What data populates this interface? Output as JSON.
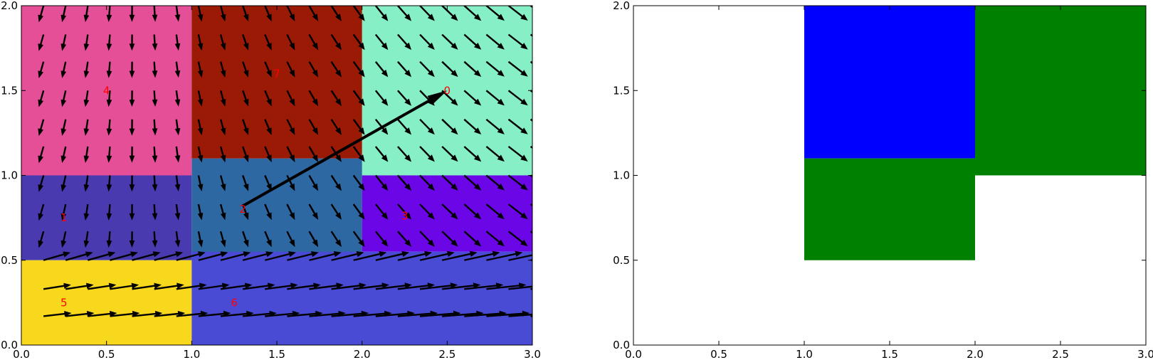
{
  "chart_data": [
    {
      "type": "heatmap",
      "xlim": [
        0,
        3
      ],
      "ylim": [
        0,
        2
      ],
      "xticks": [
        "0.0",
        "0.5",
        "1.0",
        "1.5",
        "2.0",
        "2.5",
        "3.0"
      ],
      "yticks": [
        "0.0",
        "0.5",
        "1.0",
        "1.5",
        "2.0"
      ],
      "grid": false,
      "regions": [
        {
          "label": "0",
          "x": [
            2.0,
            3.0
          ],
          "y": [
            1.0,
            2.0
          ],
          "color": "#87efc6",
          "label_at": [
            2.5,
            1.5
          ]
        },
        {
          "label": "1",
          "x": [
            0.0,
            1.0
          ],
          "y": [
            0.5,
            1.0
          ],
          "color": "#4a3aaf",
          "label_at": [
            0.25,
            0.75
          ]
        },
        {
          "label": "2",
          "x": [
            1.0,
            2.0
          ],
          "y": [
            0.5,
            1.1
          ],
          "color": "#2d68a3",
          "label_at": [
            1.3,
            0.8
          ]
        },
        {
          "label": "3",
          "x": [
            2.0,
            3.0
          ],
          "y": [
            0.55,
            1.0
          ],
          "color": "#6b06e6",
          "label_at": [
            2.25,
            0.76
          ]
        },
        {
          "label": "4",
          "x": [
            0.0,
            1.0
          ],
          "y": [
            1.0,
            2.0
          ],
          "color": "#e44f97",
          "label_at": [
            0.5,
            1.5
          ]
        },
        {
          "label": "5",
          "x": [
            0.0,
            1.0
          ],
          "y": [
            0.0,
            0.5
          ],
          "color": "#f8d81c",
          "label_at": [
            0.25,
            0.25
          ]
        },
        {
          "label": "6",
          "x": [
            1.0,
            3.0
          ],
          "y": [
            0.0,
            0.55
          ],
          "color": "#4a4bd4",
          "label_at": [
            1.25,
            0.25
          ]
        },
        {
          "label": "7",
          "x": [
            1.0,
            2.0
          ],
          "y": [
            1.1,
            2.0
          ],
          "color": "#9b1a05",
          "label_at": [
            1.5,
            1.6
          ]
        }
      ],
      "quiver": {
        "x": [
          0.13,
          0.26,
          0.39,
          0.52,
          0.65,
          0.78,
          0.91,
          1.04,
          1.17,
          1.3,
          1.43,
          1.56,
          1.69,
          1.82,
          1.95,
          2.08,
          2.21,
          2.34,
          2.47,
          2.6,
          2.73,
          2.86,
          2.99
        ],
        "y": [
          0.17,
          0.33,
          0.5,
          0.67,
          0.83,
          1.0,
          1.17,
          1.33,
          1.5,
          1.67,
          1.83,
          2.0
        ],
        "color": "#000000"
      },
      "arrows": [
        {
          "from": [
            1.3,
            0.82
          ],
          "to": [
            2.5,
            1.5
          ],
          "color": "#000000"
        }
      ]
    },
    {
      "type": "heatmap",
      "xlim": [
        0,
        3
      ],
      "ylim": [
        0,
        2
      ],
      "xticks": [
        "0.0",
        "0.5",
        "1.0",
        "1.5",
        "2.0",
        "2.5",
        "3.0"
      ],
      "yticks": [
        "0.0",
        "0.5",
        "1.0",
        "1.5",
        "2.0"
      ],
      "grid": false,
      "regions": [
        {
          "x": [
            1.0,
            2.0
          ],
          "y": [
            1.1,
            2.0
          ],
          "color": "#0000ff"
        },
        {
          "x": [
            1.0,
            2.0
          ],
          "y": [
            0.5,
            1.1
          ],
          "color": "#008000"
        },
        {
          "x": [
            2.0,
            3.0
          ],
          "y": [
            1.0,
            2.0
          ],
          "color": "#008000"
        }
      ]
    }
  ]
}
